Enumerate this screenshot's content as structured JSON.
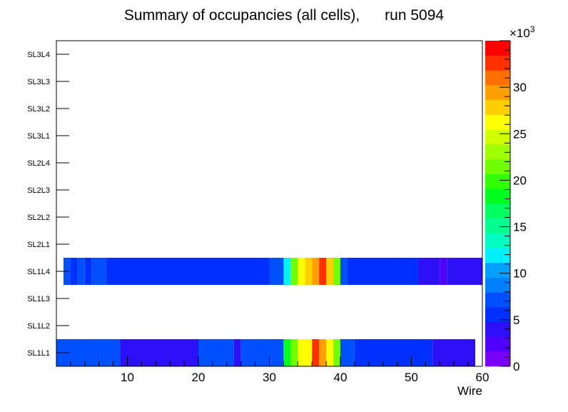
{
  "chart_data": {
    "type": "heatmap",
    "title": "Summary of occupancies (all cells),      run 5094",
    "xlabel": "Wire",
    "ylabel": "",
    "xlim": [
      0,
      60
    ],
    "x_ticks": [
      10,
      20,
      30,
      40,
      50,
      60
    ],
    "y_categories": [
      "SL1L1",
      "SL1L2",
      "SL1L3",
      "SL1L4",
      "SL2L1",
      "SL2L2",
      "SL2L3",
      "SL2L4",
      "SL3L1",
      "SL3L2",
      "SL3L3",
      "SL3L4"
    ],
    "z_range": [
      0,
      35000
    ],
    "colorbar": {
      "exponent_label": "×10",
      "exponent_power": "3",
      "tick_values": [
        0,
        5,
        10,
        15,
        20,
        25,
        30
      ],
      "tick_labels": [
        "0",
        "5",
        "10",
        "15",
        "20",
        "25",
        "30"
      ],
      "colors": [
        "#7b00f8",
        "#5000ff",
        "#2d0ff8",
        "#0030ff",
        "#0050ff",
        "#0080ff",
        "#00a0ff",
        "#00f0ff",
        "#00ffc0",
        "#00ff90",
        "#00ff60",
        "#00ff20",
        "#30ff00",
        "#70ff00",
        "#a0ff00",
        "#d0ff00",
        "#ffff00",
        "#ffd000",
        "#ffa000",
        "#ff7000",
        "#ff3000",
        "#ff0000"
      ]
    },
    "rows": [
      {
        "layer": "SL1L1",
        "cells": [
          {
            "x0": 0,
            "x1": 9,
            "z": 7500
          },
          {
            "x0": 9,
            "x1": 20,
            "z": 4200
          },
          {
            "x0": 20,
            "x1": 25,
            "z": 7500
          },
          {
            "x0": 25,
            "x1": 26,
            "z": 4200
          },
          {
            "x0": 26,
            "x1": 32,
            "z": 7500
          },
          {
            "x0": 32,
            "x1": 33,
            "z": 18000
          },
          {
            "x0": 33,
            "x1": 34,
            "z": 22000
          },
          {
            "x0": 34,
            "x1": 36,
            "z": 26000
          },
          {
            "x0": 36,
            "x1": 37,
            "z": 33000
          },
          {
            "x0": 37,
            "x1": 38,
            "z": 30000
          },
          {
            "x0": 38,
            "x1": 39,
            "z": 27000
          },
          {
            "x0": 39,
            "x1": 40,
            "z": 22000
          },
          {
            "x0": 40,
            "x1": 42,
            "z": 7500
          },
          {
            "x0": 42,
            "x1": 53,
            "z": 5500
          },
          {
            "x0": 53,
            "x1": 59,
            "z": 4200
          }
        ]
      },
      {
        "layer": "SL1L4",
        "cells": [
          {
            "x0": 1,
            "x1": 2,
            "z": 7500
          },
          {
            "x0": 2,
            "x1": 3,
            "z": 5500
          },
          {
            "x0": 3,
            "x1": 4,
            "z": 7500
          },
          {
            "x0": 4,
            "x1": 5,
            "z": 5500
          },
          {
            "x0": 5,
            "x1": 7,
            "z": 7500
          },
          {
            "x0": 7,
            "x1": 30,
            "z": 5500
          },
          {
            "x0": 30,
            "x1": 32,
            "z": 7500
          },
          {
            "x0": 32,
            "x1": 33,
            "z": 12000
          },
          {
            "x0": 33,
            "x1": 34,
            "z": 21000
          },
          {
            "x0": 34,
            "x1": 35,
            "z": 26000
          },
          {
            "x0": 35,
            "x1": 36,
            "z": 28500
          },
          {
            "x0": 36,
            "x1": 37,
            "z": 30000
          },
          {
            "x0": 37,
            "x1": 38,
            "z": 33000
          },
          {
            "x0": 38,
            "x1": 39,
            "z": 28500
          },
          {
            "x0": 39,
            "x1": 40,
            "z": 22000
          },
          {
            "x0": 40,
            "x1": 41,
            "z": 7500
          },
          {
            "x0": 41,
            "x1": 51,
            "z": 5500
          },
          {
            "x0": 51,
            "x1": 54,
            "z": 4200
          },
          {
            "x0": 54,
            "x1": 55,
            "z": 2300
          },
          {
            "x0": 55,
            "x1": 60,
            "z": 4200
          }
        ]
      }
    ]
  }
}
